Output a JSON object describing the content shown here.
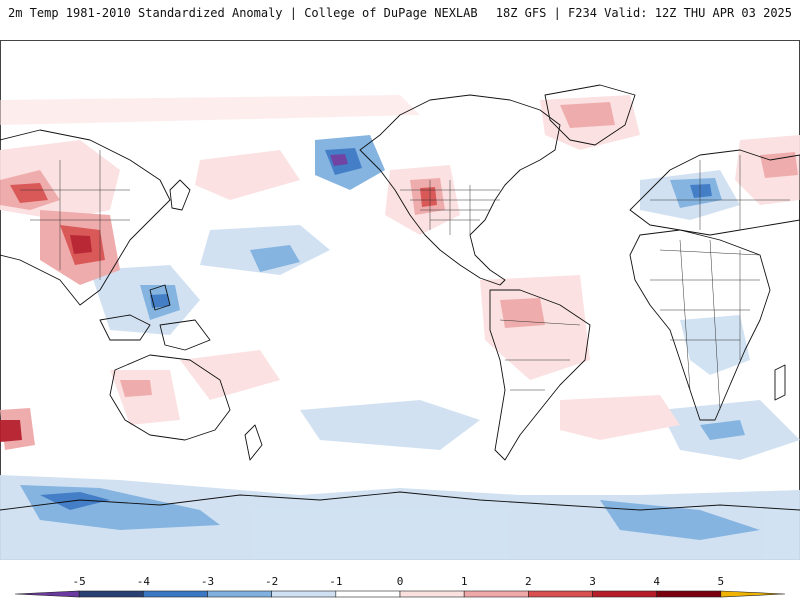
{
  "header": {
    "title_left": "2m Temp 1981-2010 Standardized Anomaly | College of DuPage NEXLAB",
    "title_right": "18Z GFS | F234 Valid: 12Z THU APR 03 2025"
  },
  "colorbar": {
    "ticks": [
      "-5",
      "-4",
      "-3",
      "-2",
      "-1",
      "0",
      "1",
      "2",
      "3",
      "4",
      "5"
    ],
    "colors": [
      "#6a3aa0",
      "#273f73",
      "#3a78c4",
      "#7fb0e0",
      "#cfe0f2",
      "#ffffff",
      "#fbe0e0",
      "#efa8a8",
      "#d85050",
      "#b51d2b",
      "#7a0010",
      "#f0b400"
    ]
  },
  "map": {
    "projection": "cylindrical-equidistant",
    "anomaly_colors": {
      "neg_strong": "#3a78c4",
      "neg_mid": "#7fb0e0",
      "neg_weak": "#cfe0f2",
      "pos_weak": "#fbe0e0",
      "pos_mid": "#efa8a8",
      "pos_strong": "#d85050",
      "pos_extreme": "#b51d2b",
      "neg_extreme": "#6a3aa0"
    }
  }
}
